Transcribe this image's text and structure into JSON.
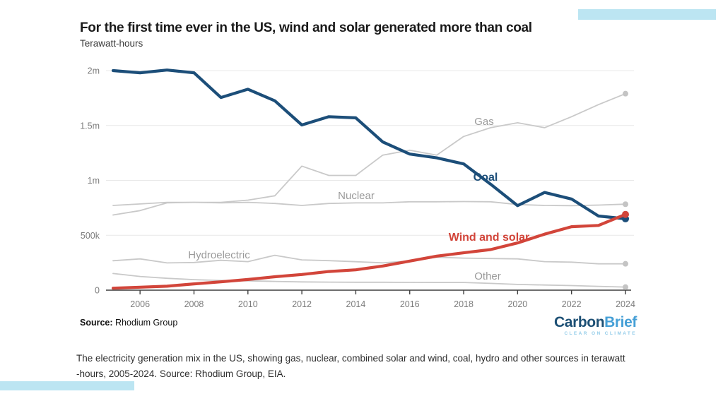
{
  "header": {
    "title": "For the first time ever in the US, wind and solar generated more than coal",
    "subtitle": "Terawatt-hours"
  },
  "source": {
    "label": "Source:",
    "value": "Rhodium Group"
  },
  "logo": {
    "carbon": "Carbon",
    "brief": "Brief",
    "tagline": "CLEAR ON CLIMATE"
  },
  "caption": {
    "line1": "The electricity generation mix in the US, showing gas, nuclear, combined solar and wind, coal, hydro and other sources in terawatt",
    "line2": "-hours, 2005-2024. Source: Rhodium Group, EIA."
  },
  "decor": {
    "accent_bar_color": "#bce5f2"
  },
  "chart_data": {
    "type": "line",
    "title": "For the first time ever in the US, wind and solar generated more than coal",
    "unit": "terawatt-hours",
    "xlabel": "",
    "ylabel": "Terawatt-hours",
    "ylim": [
      0,
      2000
    ],
    "grid": "horizontal",
    "legend": "inline-labels",
    "x": [
      2005,
      2006,
      2007,
      2008,
      2009,
      2010,
      2011,
      2012,
      2013,
      2014,
      2015,
      2016,
      2017,
      2018,
      2019,
      2020,
      2021,
      2022,
      2023,
      2024
    ],
    "x_tick_labels": [
      "2006",
      "2008",
      "2010",
      "2012",
      "2014",
      "2016",
      "2018",
      "2020",
      "2022",
      "2024"
    ],
    "y_ticks": [
      {
        "label": "2m",
        "value": 2000
      },
      {
        "label": "1.5m",
        "value": 1500
      },
      {
        "label": "1m",
        "value": 1000
      },
      {
        "label": "500k",
        "value": 500
      },
      {
        "label": "0",
        "value": 0
      }
    ],
    "series": [
      {
        "name": "Gas",
        "color": "#c9c9c9",
        "label_color": "#9a9a9a",
        "bold_label": false,
        "values": [
          685,
          725,
          795,
          800,
          800,
          820,
          860,
          1130,
          1045,
          1045,
          1230,
          1275,
          1230,
          1400,
          1480,
          1525,
          1480,
          1580,
          1690,
          1790
        ]
      },
      {
        "name": "Nuclear",
        "color": "#c9c9c9",
        "label_color": "#9a9a9a",
        "bold_label": false,
        "values": [
          772,
          785,
          800,
          800,
          795,
          800,
          790,
          772,
          790,
          795,
          795,
          805,
          805,
          807,
          805,
          780,
          772,
          770,
          775,
          783
        ]
      },
      {
        "name": "Hydroelectric",
        "color": "#c9c9c9",
        "label_color": "#9a9a9a",
        "bold_label": false,
        "values": [
          268,
          285,
          248,
          252,
          272,
          260,
          318,
          276,
          269,
          259,
          249,
          266,
          300,
          292,
          288,
          285,
          260,
          255,
          240,
          240
        ]
      },
      {
        "name": "Other",
        "color": "#c9c9c9",
        "label_color": "#9a9a9a",
        "bold_label": false,
        "values": [
          152,
          125,
          108,
          96,
          88,
          85,
          80,
          75,
          73,
          72,
          72,
          71,
          70,
          70,
          62,
          52,
          47,
          42,
          35,
          28
        ]
      },
      {
        "name": "Coal",
        "color": "#1c4e79",
        "label_color": "#1c4e79",
        "bold_label": true,
        "values": [
          2000,
          1980,
          2005,
          1980,
          1755,
          1830,
          1725,
          1505,
          1580,
          1570,
          1350,
          1240,
          1205,
          1150,
          965,
          770,
          890,
          830,
          675,
          650
        ]
      },
      {
        "name": "Wind and solar",
        "color": "#d2453a",
        "label_color": "#d2453a",
        "bold_label": true,
        "values": [
          18,
          27,
          36,
          57,
          76,
          97,
          122,
          143,
          170,
          185,
          220,
          265,
          310,
          340,
          370,
          430,
          510,
          578,
          590,
          690
        ]
      }
    ]
  }
}
